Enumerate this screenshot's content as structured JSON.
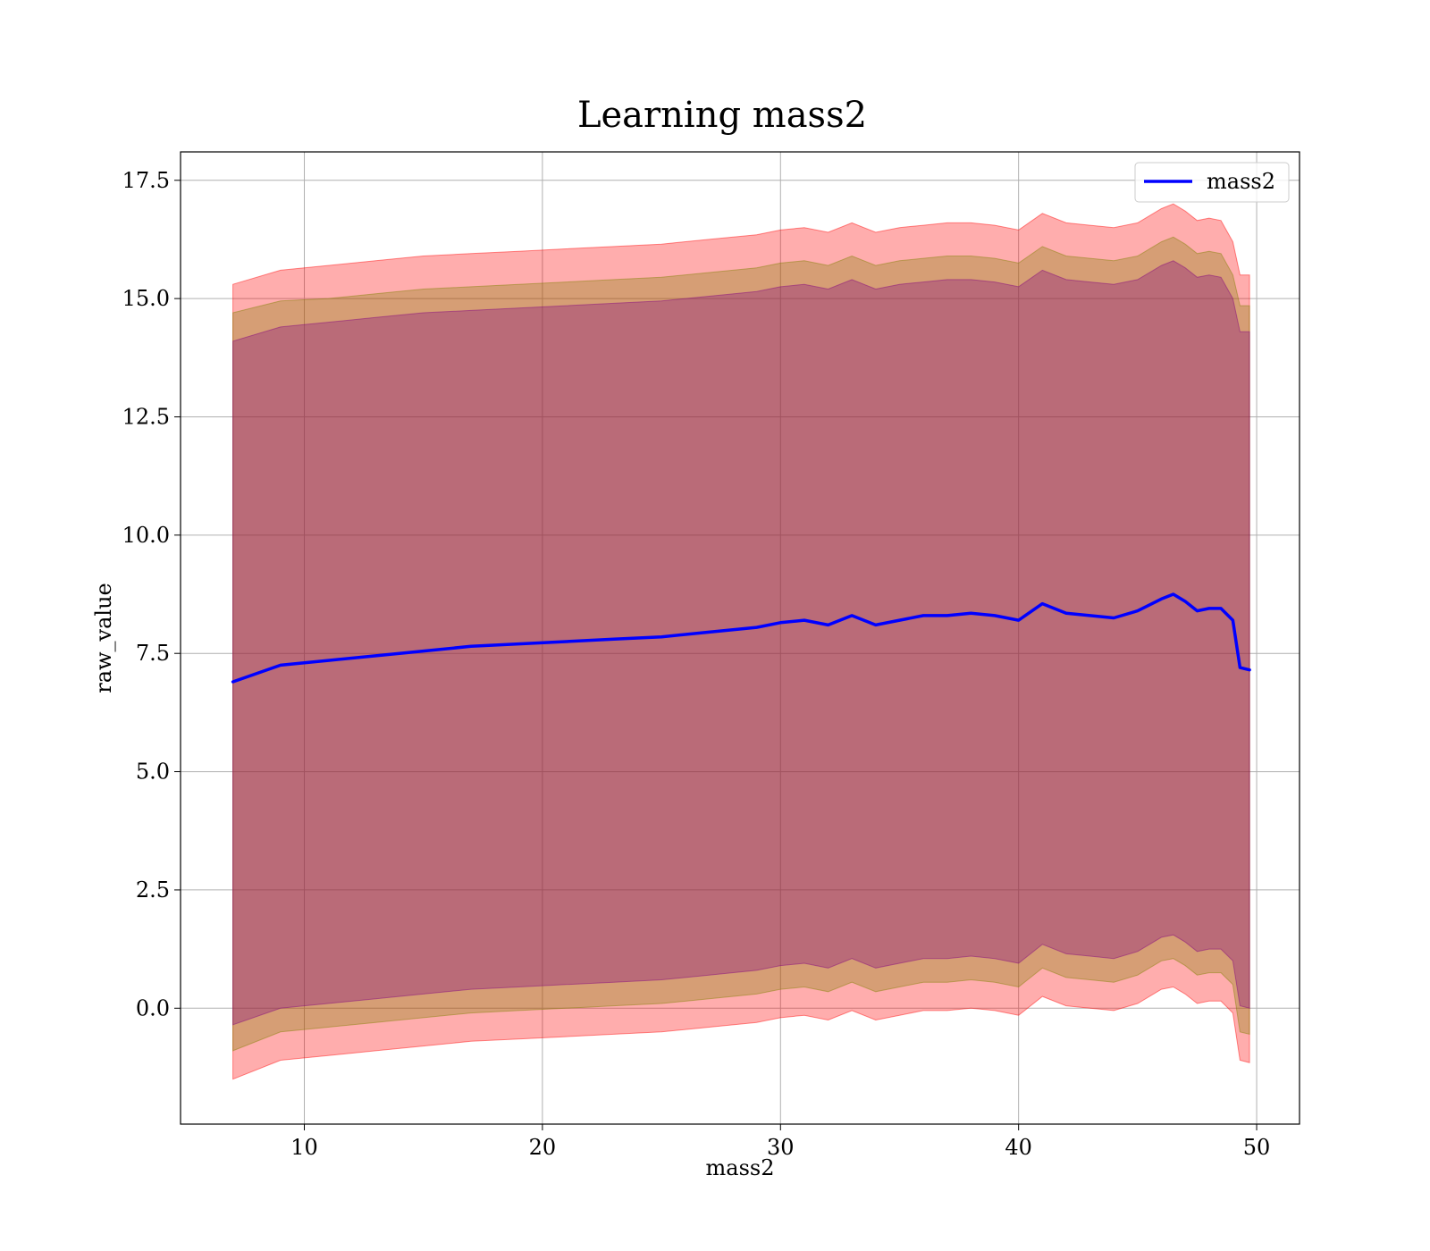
{
  "chart_data": {
    "type": "line",
    "title": "Learning mass2",
    "xlabel": "mass2",
    "ylabel": "raw_value",
    "xlim": [
      4.8,
      51.8
    ],
    "ylim": [
      -2.45,
      18.1
    ],
    "x_ticks": [
      10,
      20,
      30,
      40,
      50
    ],
    "y_ticks": [
      0.0,
      2.5,
      5.0,
      7.5,
      10.0,
      12.5,
      15.0,
      17.5
    ],
    "x_tick_labels": [
      "10",
      "20",
      "30",
      "40",
      "50"
    ],
    "y_tick_labels": [
      "0.0",
      "2.5",
      "5.0",
      "7.5",
      "10.0",
      "12.5",
      "15.0",
      "17.5"
    ],
    "grid": true,
    "legend": {
      "position": "top-right",
      "entries": [
        "mass2"
      ]
    },
    "series": [
      {
        "name": "mass2",
        "color": "#0000ff",
        "x": [
          7,
          9,
          11,
          13,
          15,
          17,
          19,
          21,
          23,
          25,
          27,
          29,
          30,
          31,
          32,
          33,
          34,
          35,
          36,
          37,
          38,
          39,
          40,
          41,
          42,
          43,
          44,
          45,
          46,
          46.5,
          47,
          47.5,
          48,
          48.5,
          49,
          49.3,
          49.7
        ],
        "values": [
          6.9,
          7.25,
          7.35,
          7.45,
          7.55,
          7.65,
          7.7,
          7.75,
          7.8,
          7.85,
          7.95,
          8.05,
          8.15,
          8.2,
          8.1,
          8.3,
          8.1,
          8.2,
          8.3,
          8.3,
          8.35,
          8.3,
          8.2,
          8.55,
          8.35,
          8.3,
          8.25,
          8.4,
          8.65,
          8.75,
          8.6,
          8.4,
          8.45,
          8.45,
          8.2,
          7.2,
          7.15
        ]
      }
    ],
    "bands": [
      {
        "color": "#ff0000",
        "opacity": 0.32,
        "x": [
          7,
          9,
          11,
          13,
          15,
          17,
          19,
          21,
          23,
          25,
          27,
          29,
          30,
          31,
          32,
          33,
          34,
          35,
          36,
          37,
          38,
          39,
          40,
          41,
          42,
          43,
          44,
          45,
          46,
          46.5,
          47,
          47.5,
          48,
          48.5,
          49,
          49.3,
          49.7
        ],
        "upper": [
          15.3,
          15.6,
          15.7,
          15.8,
          15.9,
          15.95,
          16.0,
          16.05,
          16.1,
          16.15,
          16.25,
          16.35,
          16.45,
          16.5,
          16.4,
          16.6,
          16.4,
          16.5,
          16.55,
          16.6,
          16.6,
          16.55,
          16.45,
          16.8,
          16.6,
          16.55,
          16.5,
          16.6,
          16.9,
          17.0,
          16.85,
          16.65,
          16.7,
          16.65,
          16.2,
          15.5,
          15.5
        ],
        "lower": [
          -1.5,
          -1.1,
          -1.0,
          -0.9,
          -0.8,
          -0.7,
          -0.65,
          -0.6,
          -0.55,
          -0.5,
          -0.4,
          -0.3,
          -0.2,
          -0.15,
          -0.25,
          -0.05,
          -0.25,
          -0.15,
          -0.05,
          -0.05,
          0.0,
          -0.05,
          -0.15,
          0.25,
          0.05,
          0.0,
          -0.05,
          0.1,
          0.4,
          0.45,
          0.3,
          0.1,
          0.15,
          0.15,
          -0.1,
          -1.1,
          -1.15
        ]
      },
      {
        "color": "#808000",
        "opacity": 0.32,
        "x": [
          7,
          9,
          11,
          13,
          15,
          17,
          19,
          21,
          23,
          25,
          27,
          29,
          30,
          31,
          32,
          33,
          34,
          35,
          36,
          37,
          38,
          39,
          40,
          41,
          42,
          43,
          44,
          45,
          46,
          46.5,
          47,
          47.5,
          48,
          48.5,
          49,
          49.3,
          49.7
        ],
        "upper": [
          14.7,
          14.95,
          15.0,
          15.1,
          15.2,
          15.25,
          15.3,
          15.35,
          15.4,
          15.45,
          15.55,
          15.65,
          15.75,
          15.8,
          15.7,
          15.9,
          15.7,
          15.8,
          15.85,
          15.9,
          15.9,
          15.85,
          15.75,
          16.1,
          15.9,
          15.85,
          15.8,
          15.9,
          16.2,
          16.3,
          16.15,
          15.95,
          16.0,
          15.95,
          15.5,
          14.85,
          14.85
        ],
        "lower": [
          -0.9,
          -0.5,
          -0.4,
          -0.3,
          -0.2,
          -0.1,
          -0.05,
          0.0,
          0.05,
          0.1,
          0.2,
          0.3,
          0.4,
          0.45,
          0.35,
          0.55,
          0.35,
          0.45,
          0.55,
          0.55,
          0.6,
          0.55,
          0.45,
          0.85,
          0.65,
          0.6,
          0.55,
          0.7,
          1.0,
          1.05,
          0.9,
          0.7,
          0.75,
          0.75,
          0.5,
          -0.5,
          -0.55
        ]
      },
      {
        "color": "#800080",
        "opacity": 0.32,
        "x": [
          7,
          9,
          11,
          13,
          15,
          17,
          19,
          21,
          23,
          25,
          27,
          29,
          30,
          31,
          32,
          33,
          34,
          35,
          36,
          37,
          38,
          39,
          40,
          41,
          42,
          43,
          44,
          45,
          46,
          46.5,
          47,
          47.5,
          48,
          48.5,
          49,
          49.3,
          49.7
        ],
        "upper": [
          14.1,
          14.4,
          14.5,
          14.6,
          14.7,
          14.75,
          14.8,
          14.85,
          14.9,
          14.95,
          15.05,
          15.15,
          15.25,
          15.3,
          15.2,
          15.4,
          15.2,
          15.3,
          15.35,
          15.4,
          15.4,
          15.35,
          15.25,
          15.6,
          15.4,
          15.35,
          15.3,
          15.4,
          15.7,
          15.8,
          15.65,
          15.45,
          15.5,
          15.45,
          15.0,
          14.3,
          14.3
        ],
        "lower": [
          -0.35,
          0.0,
          0.1,
          0.2,
          0.3,
          0.4,
          0.45,
          0.5,
          0.55,
          0.6,
          0.7,
          0.8,
          0.9,
          0.95,
          0.85,
          1.05,
          0.85,
          0.95,
          1.05,
          1.05,
          1.1,
          1.05,
          0.95,
          1.35,
          1.15,
          1.1,
          1.05,
          1.2,
          1.5,
          1.55,
          1.4,
          1.2,
          1.25,
          1.25,
          1.0,
          0.05,
          0.0
        ]
      }
    ]
  }
}
